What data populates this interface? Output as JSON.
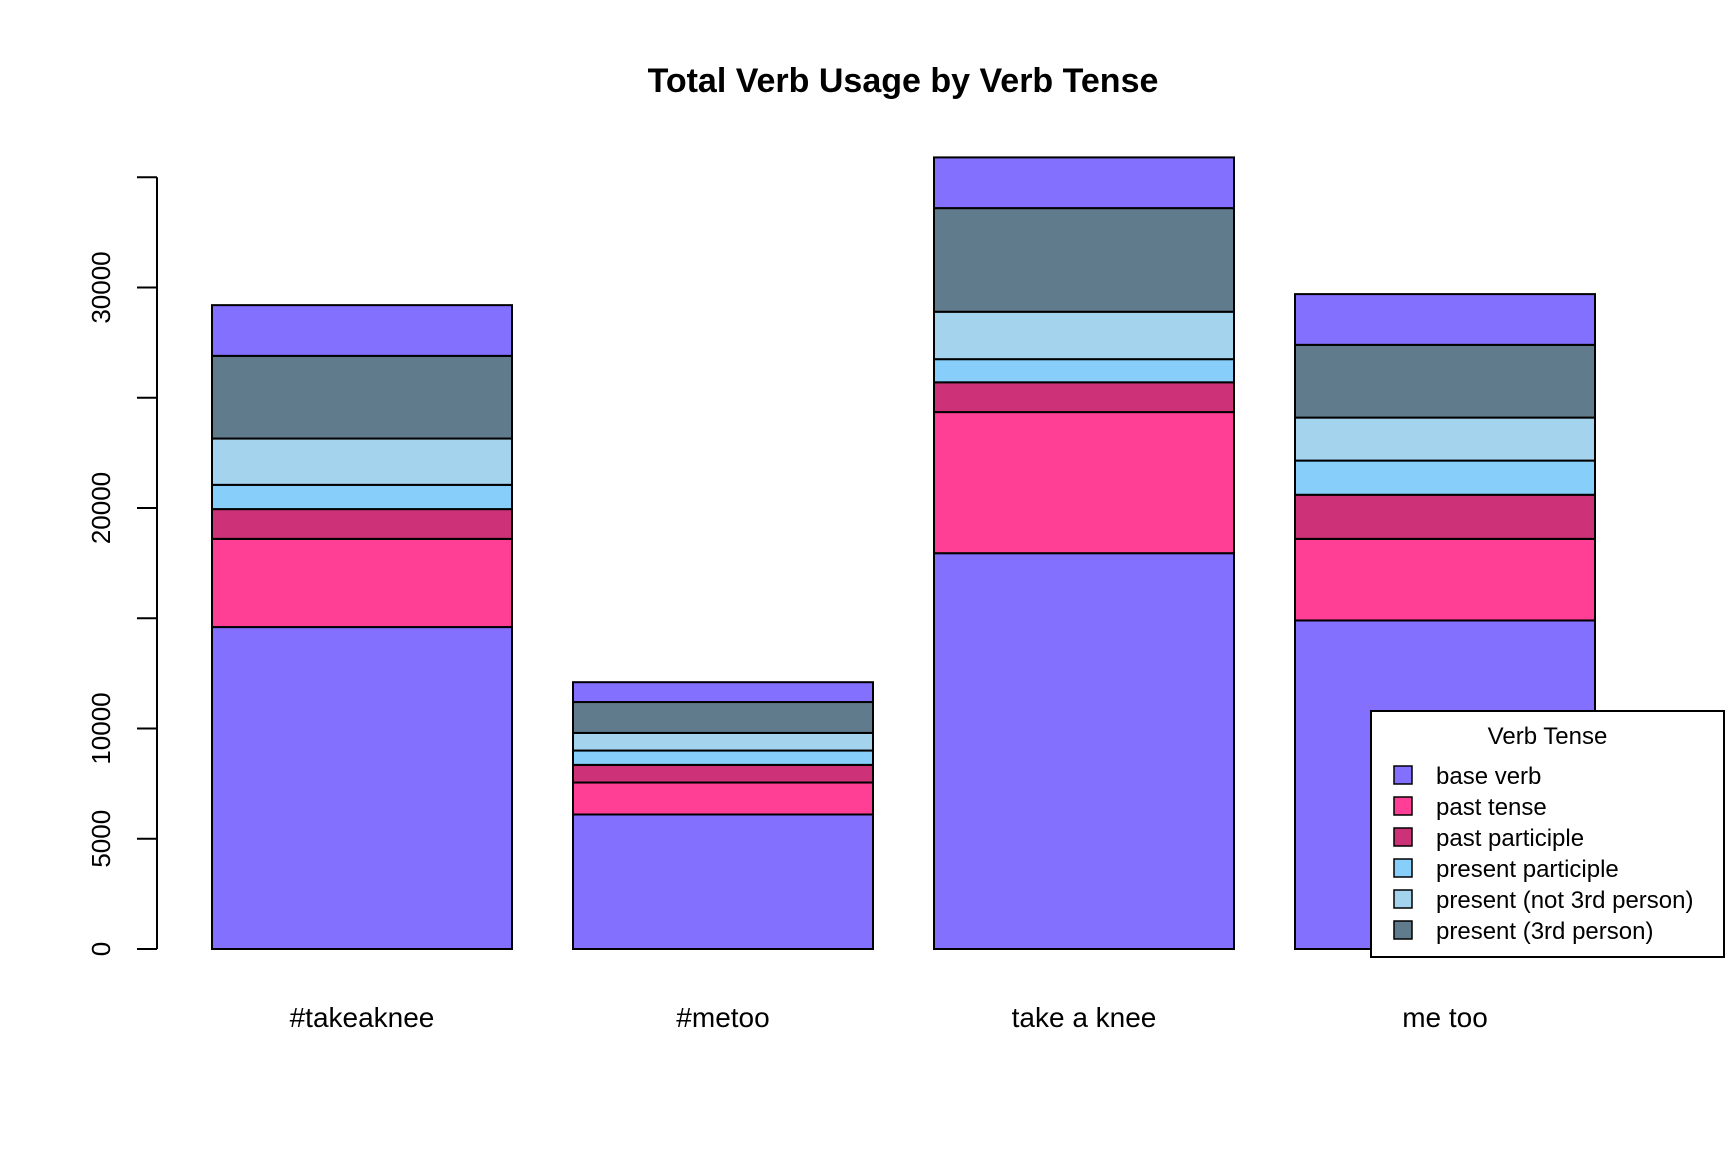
{
  "chart_data": {
    "type": "bar",
    "stacked": true,
    "title": "Total Verb Usage by Verb Tense",
    "xlabel": "",
    "ylabel": "",
    "ylim": [
      0,
      35000
    ],
    "yticks": [
      0,
      5000,
      10000,
      20000,
      30000
    ],
    "ytick_labels": [
      "0",
      "5000",
      "10000",
      "20000",
      "30000"
    ],
    "categories": [
      "#takeaknee",
      "#metoo",
      "take a knee",
      "me too"
    ],
    "series": [
      {
        "name": "base verb",
        "color": "#8470FF",
        "values": [
          14600,
          6100,
          17950,
          14900
        ]
      },
      {
        "name": "past tense",
        "color": "#FF3E96",
        "values": [
          4000,
          1450,
          6400,
          3700
        ]
      },
      {
        "name": "past participle",
        "color": "#CD3278",
        "values": [
          1350,
          800,
          1350,
          2000
        ]
      },
      {
        "name": "present participle",
        "color": "#87CEFA",
        "values": [
          1100,
          650,
          1050,
          1550
        ]
      },
      {
        "name": "present (not 3rd person)",
        "color": "#A4D3EE",
        "values": [
          2100,
          800,
          2150,
          1950
        ]
      },
      {
        "name": "present (3rd person)",
        "color": "#607B8B",
        "values": [
          3750,
          1400,
          4700,
          3300
        ]
      },
      {
        "name": "base verb",
        "color": "#8470FF",
        "values": [
          2300,
          900,
          2300,
          2300
        ]
      }
    ],
    "legend": {
      "title": "Verb Tense",
      "position": "bottom-right",
      "entries": [
        {
          "label": "base verb",
          "color": "#8470FF"
        },
        {
          "label": "past tense",
          "color": "#FF3E96"
        },
        {
          "label": "past participle",
          "color": "#CD3278"
        },
        {
          "label": "present participle",
          "color": "#87CEFA"
        },
        {
          "label": "present (not 3rd person)",
          "color": "#A4D3EE"
        },
        {
          "label": "present (3rd person)",
          "color": "#607B8B"
        }
      ]
    },
    "grid": false
  }
}
